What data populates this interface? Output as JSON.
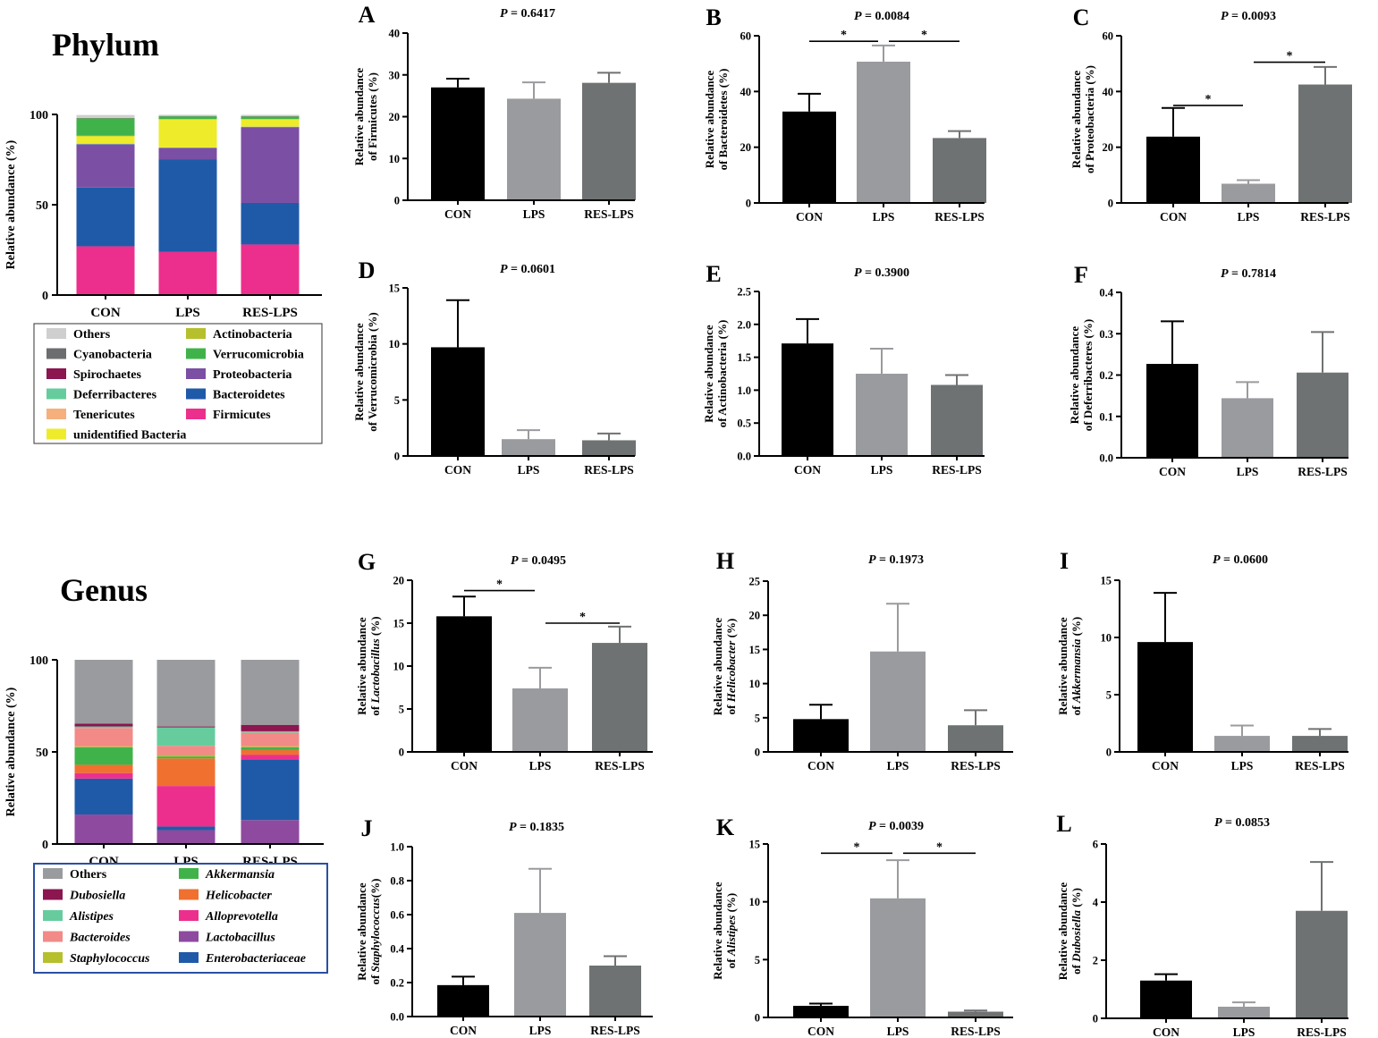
{
  "colors": {
    "CON": "#000000",
    "LPS": "#9a9b9e",
    "RES-LPS": "#6f7273",
    "axis": "#000000"
  },
  "chart_data": [
    {
      "id": "phylum-stack",
      "type": "bar",
      "stacked": true,
      "title": "Phylum",
      "ylabel": "Relative abundance (%)",
      "ylim": [
        0,
        100
      ],
      "yticks": [
        0,
        50,
        100
      ],
      "categories": [
        "CON",
        "LPS",
        "RES-LPS"
      ],
      "legend_style": "plain",
      "legend": [
        "Others",
        "Actinobacteria",
        "Cyanobacteria",
        "Verrucomicrobia",
        "Spirochaetes",
        "Proteobacteria",
        "Deferribacteres",
        "Bacteroidetes",
        "Tenericutes",
        "Firmicutes",
        "unidentified Bacteria"
      ],
      "series": [
        {
          "name": "Firmicutes",
          "color": "#ec2f8c",
          "values": [
            27,
            24,
            28
          ]
        },
        {
          "name": "Bacteroidetes",
          "color": "#1f5aa8",
          "values": [
            32.5,
            51,
            23
          ]
        },
        {
          "name": "Proteobacteria",
          "color": "#7b4fa3",
          "values": [
            24,
            6.5,
            42
          ]
        },
        {
          "name": "Deferribacteres",
          "color": "#66cc9e",
          "values": [
            0.2,
            0.15,
            0.2
          ]
        },
        {
          "name": "Tenericutes",
          "color": "#f5b07d",
          "values": [
            0.2,
            0.1,
            0.1
          ]
        },
        {
          "name": "unidentified Bacteria",
          "color": "#eeeb2a",
          "values": [
            4,
            15.5,
            4
          ]
        },
        {
          "name": "Actinobacteria",
          "color": "#b5c02c",
          "values": [
            0.3,
            0.2,
            0.2
          ]
        },
        {
          "name": "Verrucomicrobia",
          "color": "#3fb34a",
          "values": [
            9.7,
            1.5,
            1.4
          ]
        },
        {
          "name": "Spirochaetes",
          "color": "#8b1650",
          "values": [
            0.1,
            0.1,
            0.1
          ]
        },
        {
          "name": "Cyanobacteria",
          "color": "#6c6d6f",
          "values": [
            0.1,
            0.1,
            0.1
          ]
        },
        {
          "name": "Others",
          "color": "#cfcfcf",
          "values": [
            1.6,
            0.65,
            0.7
          ]
        }
      ]
    },
    {
      "id": "genus-stack",
      "type": "bar",
      "stacked": true,
      "title": "Genus",
      "ylabel": "Relative abundance (%)",
      "ylim": [
        0,
        100
      ],
      "yticks": [
        0,
        50,
        100
      ],
      "categories": [
        "CON",
        "LPS",
        "RES-LPS"
      ],
      "legend_style": "italic",
      "legend": [
        "Others",
        "Akkermansia",
        "Dubosiella",
        "Helicobacter",
        "Alistipes",
        "Alloprevotella",
        "Bacteroides",
        "Lactobacillus",
        "Staphylococcus",
        "Enterobacteriaceae"
      ],
      "series": [
        {
          "name": "Lactobacillus",
          "color": "#8e4a9e",
          "values": [
            16,
            7.5,
            13
          ]
        },
        {
          "name": "Enterobacteriaceae",
          "color": "#1f5aa8",
          "values": [
            19.5,
            2,
            33
          ]
        },
        {
          "name": "Alloprevotella",
          "color": "#ec2f8c",
          "values": [
            3,
            22,
            2.5
          ]
        },
        {
          "name": "Helicobacter",
          "color": "#f07030",
          "values": [
            4.5,
            15,
            2.5
          ]
        },
        {
          "name": "Akkermansia",
          "color": "#3fb34a",
          "values": [
            9.5,
            1,
            1.5
          ]
        },
        {
          "name": "Staphylococcus",
          "color": "#b5c02c",
          "values": [
            0.5,
            0.8,
            0.5
          ]
        },
        {
          "name": "Bacteroides",
          "color": "#f28a87",
          "values": [
            10,
            5,
            7.5
          ]
        },
        {
          "name": "Alistipes",
          "color": "#66cc9e",
          "values": [
            0.8,
            10,
            0.7
          ]
        },
        {
          "name": "Dubosiella",
          "color": "#8b1650",
          "values": [
            1.5,
            0.5,
            3.5
          ]
        },
        {
          "name": "Others",
          "color": "#9a9b9e",
          "values": [
            34.7,
            36.2,
            35.3
          ]
        }
      ]
    },
    {
      "id": "A",
      "type": "bar",
      "panel_label": "A",
      "p_value": "P = 0.6417",
      "ylabel_lines": [
        "Relative abundance",
        "of Firmicutes (%)"
      ],
      "ylim": [
        0,
        40
      ],
      "yticks": [
        0,
        10,
        20,
        30,
        40
      ],
      "categories": [
        "CON",
        "LPS",
        "RES-LPS"
      ],
      "values": [
        27.0,
        24.3,
        28.1
      ],
      "errors": [
        2.1,
        3.9,
        2.4
      ],
      "significance": []
    },
    {
      "id": "B",
      "type": "bar",
      "panel_label": "B",
      "p_value": "P = 0.0084",
      "ylabel_lines": [
        "Relative abundance",
        "of Bacteroidetes (%)"
      ],
      "ylim": [
        0,
        60
      ],
      "yticks": [
        0,
        20,
        40,
        60
      ],
      "categories": [
        "CON",
        "LPS",
        "RES-LPS"
      ],
      "values": [
        32.8,
        50.7,
        23.3
      ],
      "errors": [
        6.4,
        5.8,
        2.5
      ],
      "significance": [
        {
          "from": 0,
          "to": 1,
          "level": 58,
          "label": "*"
        },
        {
          "from": 1,
          "to": 2,
          "level": 58,
          "label": "*"
        }
      ]
    },
    {
      "id": "C",
      "type": "bar",
      "panel_label": "C",
      "p_value": "P = 0.0093",
      "ylabel_lines": [
        "Relative abundance",
        "of Proteobacteria (%)"
      ],
      "ylim": [
        0,
        60
      ],
      "yticks": [
        0,
        20,
        40,
        60
      ],
      "categories": [
        "CON",
        "LPS",
        "RES-LPS"
      ],
      "values": [
        23.8,
        6.9,
        42.5
      ],
      "errors": [
        10.3,
        1.3,
        6.3
      ],
      "significance": [
        {
          "from": 0,
          "to": 1,
          "level": 35,
          "label": "*"
        },
        {
          "from": 1,
          "to": 2,
          "level": 50.5,
          "label": "*"
        }
      ]
    },
    {
      "id": "D",
      "type": "bar",
      "panel_label": "D",
      "p_value": "P = 0.0601",
      "ylabel_lines": [
        "Relative abundance",
        "of Verrucomicrobia (%)"
      ],
      "ylim": [
        0,
        15
      ],
      "yticks": [
        0,
        5,
        10,
        15
      ],
      "categories": [
        "CON",
        "LPS",
        "RES-LPS"
      ],
      "values": [
        9.7,
        1.5,
        1.4
      ],
      "errors": [
        4.2,
        0.8,
        0.6
      ],
      "significance": []
    },
    {
      "id": "E",
      "type": "bar",
      "panel_label": "E",
      "p_value": "P = 0.3900",
      "ylabel_lines": [
        "Relative abundance",
        "of Actinobacteria (%)"
      ],
      "ylim": [
        0,
        2.5
      ],
      "yticks": [
        0.0,
        0.5,
        1.0,
        1.5,
        2.0,
        2.5
      ],
      "decimals": 1,
      "categories": [
        "CON",
        "LPS",
        "RES-LPS"
      ],
      "values": [
        1.71,
        1.25,
        1.08
      ],
      "errors": [
        0.37,
        0.38,
        0.15
      ],
      "significance": []
    },
    {
      "id": "F",
      "type": "bar",
      "panel_label": "F",
      "p_value": "P = 0.7814",
      "ylabel_lines": [
        "Relative abundance",
        "of Deferribacteres (%)"
      ],
      "ylim": [
        0,
        0.4
      ],
      "yticks": [
        0.0,
        0.1,
        0.2,
        0.3,
        0.4
      ],
      "decimals": 1,
      "categories": [
        "CON",
        "LPS",
        "RES-LPS"
      ],
      "values": [
        0.227,
        0.144,
        0.206
      ],
      "errors": [
        0.103,
        0.039,
        0.098
      ],
      "significance": []
    },
    {
      "id": "G",
      "type": "bar",
      "panel_label": "G",
      "p_value": "P = 0.0495",
      "ylabel_lines": [
        "Relative abundance",
        "of Lactobacillus (%)"
      ],
      "italic_taxon": "Lactobacillus",
      "ylim": [
        0,
        20
      ],
      "yticks": [
        0,
        5,
        10,
        15,
        20
      ],
      "categories": [
        "CON",
        "LPS",
        "RES-LPS"
      ],
      "values": [
        15.8,
        7.4,
        12.7
      ],
      "errors": [
        2.3,
        2.4,
        1.9
      ],
      "significance": [
        {
          "from": 0,
          "to": 1,
          "level": 18.8,
          "label": "*"
        },
        {
          "from": 1,
          "to": 2,
          "level": 15.0,
          "label": "*"
        }
      ]
    },
    {
      "id": "H",
      "type": "bar",
      "panel_label": "H",
      "p_value": "P = 0.1973",
      "ylabel_lines": [
        "Relative abundance",
        "of Helicobacter (%)"
      ],
      "italic_taxon": "Helicobacter",
      "ylim": [
        0,
        25
      ],
      "yticks": [
        0,
        5,
        10,
        15,
        20,
        25
      ],
      "categories": [
        "CON",
        "LPS",
        "RES-LPS"
      ],
      "values": [
        4.8,
        14.7,
        3.9
      ],
      "errors": [
        2.1,
        7.0,
        2.2
      ],
      "significance": []
    },
    {
      "id": "I",
      "type": "bar",
      "panel_label": "I",
      "p_value": "P = 0.0600",
      "ylabel_lines": [
        "Relative abundance",
        "of Akkermansia (%)"
      ],
      "italic_taxon": "Akkermansia",
      "ylim": [
        0,
        15
      ],
      "yticks": [
        0,
        5,
        10,
        15
      ],
      "categories": [
        "CON",
        "LPS",
        "RES-LPS"
      ],
      "values": [
        9.6,
        1.4,
        1.4
      ],
      "errors": [
        4.3,
        0.9,
        0.6
      ],
      "significance": []
    },
    {
      "id": "J",
      "type": "bar",
      "panel_label": "J",
      "p_value": "P = 0.1835",
      "ylabel_lines": [
        "Relative abundance",
        "of Staphylococcus(%)"
      ],
      "italic_taxon": "Staphylococcus",
      "ylim": [
        0,
        1.0
      ],
      "yticks": [
        0.0,
        0.2,
        0.4,
        0.6,
        0.8,
        1.0
      ],
      "decimals": 1,
      "categories": [
        "CON",
        "LPS",
        "RES-LPS"
      ],
      "values": [
        0.185,
        0.61,
        0.3
      ],
      "errors": [
        0.05,
        0.26,
        0.055
      ],
      "significance": []
    },
    {
      "id": "K",
      "type": "bar",
      "panel_label": "K",
      "p_value": "P = 0.0039",
      "ylabel_lines": [
        "Relative abundance",
        "of Alistipes (%)"
      ],
      "italic_taxon": "Alistipes",
      "ylim": [
        0,
        15
      ],
      "yticks": [
        0,
        5,
        10,
        15
      ],
      "categories": [
        "CON",
        "LPS",
        "RES-LPS"
      ],
      "values": [
        1.0,
        10.3,
        0.5
      ],
      "errors": [
        0.2,
        3.3,
        0.1
      ],
      "significance": [
        {
          "from": 0,
          "to": 1,
          "level": 14.2,
          "label": "*"
        },
        {
          "from": 1,
          "to": 2,
          "level": 14.2,
          "label": "*"
        }
      ]
    },
    {
      "id": "L",
      "type": "bar",
      "panel_label": "L",
      "p_value": "P = 0.0853",
      "ylabel_lines": [
        "Relative abundance",
        "of Dubosiella (%)"
      ],
      "italic_taxon": "Dubosiella",
      "ylim": [
        0,
        6
      ],
      "yticks": [
        0,
        2,
        4,
        6
      ],
      "categories": [
        "CON",
        "LPS",
        "RES-LPS"
      ],
      "values": [
        1.3,
        0.4,
        3.7
      ],
      "errors": [
        0.22,
        0.15,
        1.68
      ],
      "significance": []
    }
  ]
}
